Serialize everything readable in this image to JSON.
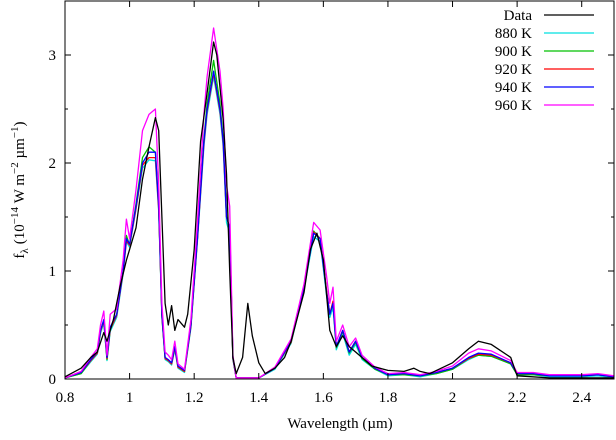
{
  "chart_data": {
    "type": "line",
    "title": "",
    "xlabel": "Wavelength (µm)",
    "ylabel": {
      "main": "f",
      "sub": "λ",
      "unit_prefix": "(10",
      "exp1": "−14",
      "unit_mid": " W m",
      "exp2": "−2",
      "unit_mid2": " µm",
      "exp3": "−1",
      "unit_end": ")"
    },
    "xlim": [
      0.8,
      2.5
    ],
    "ylim": [
      0,
      3.5
    ],
    "xticks": [
      0.8,
      1,
      1.2,
      1.4,
      1.6,
      1.8,
      2,
      2.2,
      2.4
    ],
    "xtick_labels": [
      "0.8",
      "1",
      "1.2",
      "1.4",
      "1.6",
      "1.8",
      "2",
      "2.2",
      "2.4"
    ],
    "yticks": [
      0,
      1,
      2,
      3
    ],
    "ytick_labels": [
      "0",
      "1",
      "2",
      "3"
    ],
    "grid": false,
    "legend_position": "top-right",
    "series": [
      {
        "name": "Data",
        "color": "#000000",
        "x": [
          0.8,
          0.85,
          0.88,
          0.9,
          0.92,
          0.93,
          0.95,
          0.97,
          0.99,
          1.0,
          1.02,
          1.04,
          1.06,
          1.08,
          1.09,
          1.1,
          1.11,
          1.12,
          1.13,
          1.14,
          1.15,
          1.17,
          1.18,
          1.2,
          1.22,
          1.24,
          1.26,
          1.27,
          1.29,
          1.3,
          1.31,
          1.32,
          1.33,
          1.35,
          1.366,
          1.38,
          1.4,
          1.42,
          1.45,
          1.48,
          1.5,
          1.54,
          1.56,
          1.58,
          1.6,
          1.62,
          1.64,
          1.66,
          1.68,
          1.7,
          1.75,
          1.8,
          1.85,
          1.88,
          1.9,
          1.93,
          2.0,
          2.05,
          2.08,
          2.12,
          2.18,
          2.2,
          2.3,
          2.5
        ],
        "y": [
          0.02,
          0.1,
          0.2,
          0.25,
          0.43,
          0.35,
          0.55,
          0.85,
          1.1,
          1.2,
          1.4,
          1.85,
          2.15,
          2.42,
          2.3,
          1.5,
          0.7,
          0.5,
          0.68,
          0.45,
          0.55,
          0.48,
          0.6,
          1.2,
          2.2,
          2.65,
          3.12,
          3.0,
          2.4,
          1.9,
          1.0,
          0.2,
          0.05,
          0.2,
          0.7,
          0.4,
          0.15,
          0.05,
          0.1,
          0.2,
          0.35,
          0.8,
          1.2,
          1.35,
          1.1,
          0.45,
          0.3,
          0.4,
          0.3,
          0.25,
          0.12,
          0.08,
          0.07,
          0.1,
          0.07,
          0.05,
          0.15,
          0.28,
          0.35,
          0.32,
          0.2,
          0.03,
          0.01,
          0.01
        ]
      },
      {
        "name": "880 K",
        "color": "#00e0e0",
        "x": [
          0.8,
          0.85,
          0.88,
          0.9,
          0.91,
          0.92,
          0.93,
          0.94,
          0.96,
          0.98,
          0.99,
          1.0,
          1.02,
          1.04,
          1.06,
          1.08,
          1.09,
          1.1,
          1.11,
          1.12,
          1.13,
          1.14,
          1.15,
          1.17,
          1.19,
          1.21,
          1.23,
          1.24,
          1.26,
          1.28,
          1.29,
          1.3,
          1.31,
          1.32,
          1.33,
          1.4,
          1.45,
          1.5,
          1.54,
          1.57,
          1.59,
          1.61,
          1.62,
          1.63,
          1.64,
          1.66,
          1.68,
          1.7,
          1.72,
          1.76,
          1.8,
          1.85,
          1.9,
          1.95,
          2.0,
          2.05,
          2.08,
          2.12,
          2.18,
          2.2,
          2.25,
          2.3,
          2.4,
          2.45,
          2.5
        ],
        "y": [
          0.01,
          0.05,
          0.16,
          0.23,
          0.42,
          0.52,
          0.17,
          0.44,
          0.57,
          0.97,
          1.27,
          1.22,
          1.57,
          1.95,
          2.03,
          2.02,
          1.55,
          0.57,
          0.18,
          0.16,
          0.13,
          0.27,
          0.1,
          0.06,
          0.47,
          1.27,
          2.15,
          2.45,
          2.8,
          2.45,
          2.15,
          1.45,
          1.35,
          0.18,
          0.01,
          0.01,
          0.09,
          0.33,
          0.83,
          1.32,
          1.27,
          0.77,
          0.57,
          0.66,
          0.27,
          0.42,
          0.22,
          0.32,
          0.18,
          0.09,
          0.03,
          0.04,
          0.02,
          0.05,
          0.09,
          0.18,
          0.22,
          0.21,
          0.14,
          0.04,
          0.04,
          0.02,
          0.02,
          0.03,
          0.01
        ]
      },
      {
        "name": "900 K",
        "color": "#00c000",
        "x": [
          0.8,
          0.85,
          0.88,
          0.9,
          0.91,
          0.92,
          0.93,
          0.94,
          0.96,
          0.98,
          0.99,
          1.0,
          1.02,
          1.04,
          1.06,
          1.08,
          1.09,
          1.1,
          1.11,
          1.12,
          1.13,
          1.14,
          1.15,
          1.17,
          1.19,
          1.21,
          1.23,
          1.24,
          1.26,
          1.28,
          1.29,
          1.3,
          1.31,
          1.32,
          1.33,
          1.4,
          1.45,
          1.5,
          1.54,
          1.57,
          1.59,
          1.61,
          1.62,
          1.63,
          1.64,
          1.66,
          1.68,
          1.7,
          1.72,
          1.76,
          1.8,
          1.85,
          1.9,
          1.95,
          2.0,
          2.05,
          2.08,
          2.12,
          2.18,
          2.2,
          2.25,
          2.3,
          2.4,
          2.45,
          2.5
        ],
        "y": [
          0.01,
          0.05,
          0.17,
          0.24,
          0.44,
          0.54,
          0.18,
          0.46,
          0.59,
          1.0,
          1.33,
          1.24,
          1.62,
          2.05,
          2.15,
          2.1,
          1.6,
          0.58,
          0.19,
          0.17,
          0.14,
          0.29,
          0.11,
          0.07,
          0.49,
          1.3,
          2.22,
          2.55,
          2.95,
          2.55,
          2.22,
          1.5,
          1.4,
          0.19,
          0.01,
          0.01,
          0.1,
          0.34,
          0.84,
          1.37,
          1.3,
          0.8,
          0.6,
          0.7,
          0.29,
          0.44,
          0.24,
          0.34,
          0.19,
          0.09,
          0.04,
          0.04,
          0.03,
          0.05,
          0.09,
          0.19,
          0.22,
          0.21,
          0.14,
          0.04,
          0.04,
          0.03,
          0.03,
          0.04,
          0.02
        ]
      },
      {
        "name": "920 K",
        "color": "#ff0000",
        "x": [
          0.8,
          0.85,
          0.88,
          0.9,
          0.91,
          0.92,
          0.93,
          0.94,
          0.96,
          0.98,
          0.99,
          1.0,
          1.02,
          1.04,
          1.06,
          1.08,
          1.09,
          1.1,
          1.11,
          1.12,
          1.13,
          1.14,
          1.15,
          1.17,
          1.19,
          1.21,
          1.23,
          1.24,
          1.26,
          1.28,
          1.29,
          1.3,
          1.31,
          1.32,
          1.33,
          1.4,
          1.45,
          1.5,
          1.54,
          1.57,
          1.59,
          1.61,
          1.62,
          1.63,
          1.64,
          1.66,
          1.68,
          1.7,
          1.72,
          1.76,
          1.8,
          1.85,
          1.9,
          1.95,
          2.0,
          2.05,
          2.08,
          2.12,
          2.18,
          2.2,
          2.25,
          2.3,
          2.4,
          2.45,
          2.5
        ],
        "y": [
          0.01,
          0.06,
          0.17,
          0.24,
          0.44,
          0.54,
          0.19,
          0.46,
          0.59,
          0.99,
          1.28,
          1.24,
          1.58,
          1.98,
          2.05,
          2.05,
          1.57,
          0.59,
          0.19,
          0.17,
          0.14,
          0.29,
          0.11,
          0.07,
          0.49,
          1.29,
          2.18,
          2.48,
          2.83,
          2.48,
          2.18,
          1.5,
          1.4,
          0.19,
          0.01,
          0.01,
          0.1,
          0.34,
          0.85,
          1.36,
          1.3,
          0.82,
          0.6,
          0.72,
          0.3,
          0.45,
          0.25,
          0.35,
          0.2,
          0.1,
          0.04,
          0.05,
          0.03,
          0.06,
          0.1,
          0.19,
          0.23,
          0.22,
          0.15,
          0.05,
          0.05,
          0.03,
          0.03,
          0.04,
          0.02
        ]
      },
      {
        "name": "940 K",
        "color": "#0000ff",
        "x": [
          0.8,
          0.85,
          0.88,
          0.9,
          0.91,
          0.92,
          0.93,
          0.94,
          0.96,
          0.98,
          0.99,
          1.0,
          1.02,
          1.04,
          1.06,
          1.08,
          1.09,
          1.1,
          1.11,
          1.12,
          1.13,
          1.14,
          1.15,
          1.17,
          1.19,
          1.21,
          1.23,
          1.24,
          1.26,
          1.28,
          1.29,
          1.3,
          1.31,
          1.32,
          1.33,
          1.4,
          1.45,
          1.5,
          1.54,
          1.57,
          1.59,
          1.61,
          1.62,
          1.63,
          1.64,
          1.66,
          1.68,
          1.7,
          1.72,
          1.76,
          1.8,
          1.85,
          1.9,
          1.95,
          2.0,
          2.05,
          2.08,
          2.12,
          2.18,
          2.2,
          2.25,
          2.3,
          2.4,
          2.45,
          2.5
        ],
        "y": [
          0.01,
          0.06,
          0.18,
          0.25,
          0.45,
          0.55,
          0.2,
          0.48,
          0.6,
          1.0,
          1.3,
          1.25,
          1.6,
          2.0,
          2.1,
          2.1,
          1.6,
          0.6,
          0.2,
          0.18,
          0.15,
          0.3,
          0.12,
          0.08,
          0.5,
          1.3,
          2.2,
          2.5,
          2.85,
          2.5,
          2.2,
          1.5,
          1.4,
          0.2,
          0.01,
          0.01,
          0.1,
          0.35,
          0.85,
          1.35,
          1.3,
          0.8,
          0.6,
          0.7,
          0.3,
          0.45,
          0.25,
          0.35,
          0.2,
          0.1,
          0.04,
          0.05,
          0.03,
          0.06,
          0.1,
          0.2,
          0.24,
          0.23,
          0.15,
          0.05,
          0.05,
          0.03,
          0.03,
          0.04,
          0.02
        ]
      },
      {
        "name": "960 K",
        "color": "#ff00ff",
        "x": [
          0.8,
          0.85,
          0.88,
          0.9,
          0.91,
          0.92,
          0.93,
          0.94,
          0.96,
          0.98,
          0.99,
          1.0,
          1.02,
          1.04,
          1.06,
          1.08,
          1.09,
          1.1,
          1.11,
          1.12,
          1.13,
          1.14,
          1.15,
          1.17,
          1.19,
          1.21,
          1.23,
          1.24,
          1.26,
          1.28,
          1.29,
          1.3,
          1.31,
          1.32,
          1.33,
          1.4,
          1.45,
          1.5,
          1.54,
          1.57,
          1.59,
          1.61,
          1.62,
          1.63,
          1.64,
          1.66,
          1.68,
          1.7,
          1.72,
          1.76,
          1.8,
          1.85,
          1.9,
          1.95,
          2.0,
          2.05,
          2.08,
          2.12,
          2.18,
          2.2,
          2.25,
          2.3,
          2.4,
          2.45,
          2.5
        ],
        "y": [
          0.01,
          0.07,
          0.2,
          0.28,
          0.5,
          0.63,
          0.22,
          0.6,
          0.65,
          1.1,
          1.48,
          1.3,
          1.75,
          2.3,
          2.45,
          2.5,
          1.8,
          0.7,
          0.25,
          0.22,
          0.18,
          0.35,
          0.14,
          0.09,
          0.55,
          1.45,
          2.45,
          2.8,
          3.25,
          2.85,
          2.5,
          1.8,
          1.6,
          0.22,
          0.01,
          0.01,
          0.11,
          0.37,
          0.88,
          1.45,
          1.38,
          0.95,
          0.7,
          0.85,
          0.35,
          0.5,
          0.3,
          0.38,
          0.22,
          0.11,
          0.05,
          0.06,
          0.04,
          0.07,
          0.12,
          0.24,
          0.28,
          0.26,
          0.17,
          0.06,
          0.06,
          0.04,
          0.04,
          0.05,
          0.03
        ]
      }
    ]
  }
}
